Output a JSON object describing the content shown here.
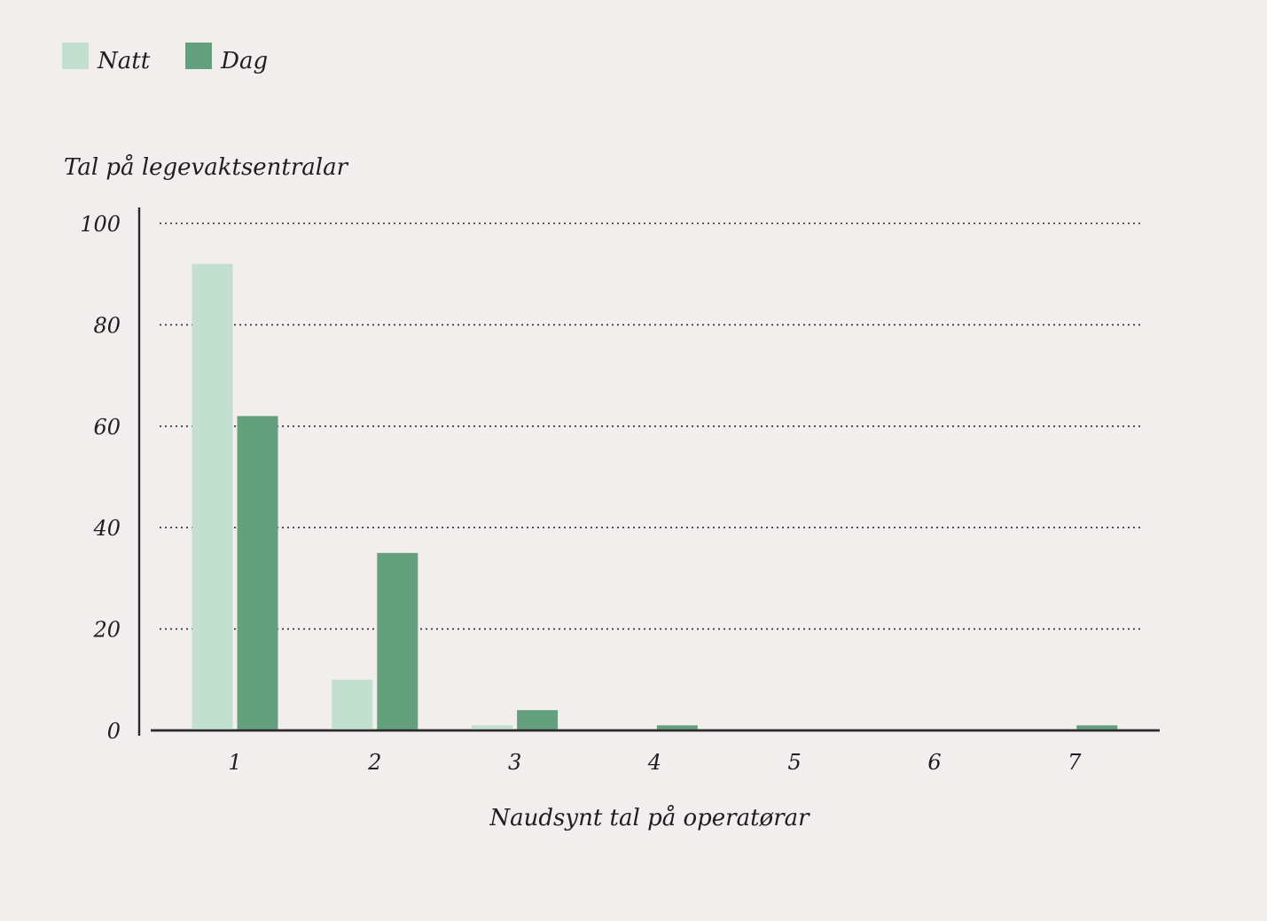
{
  "legend": {
    "items": [
      {
        "label": "Natt",
        "color": "#c3dfcf"
      },
      {
        "label": "Dag",
        "color": "#64a07d"
      }
    ]
  },
  "chart_data": {
    "type": "bar",
    "title": "",
    "ylabel": "Tal på legevaktsentralar",
    "xlabel": "Naudsynt tal på operatørar",
    "categories": [
      "1",
      "2",
      "3",
      "4",
      "5",
      "6",
      "7"
    ],
    "ylim": [
      0,
      100
    ],
    "yticks": [
      0,
      20,
      40,
      60,
      80,
      100
    ],
    "grid": "dotted horizontal",
    "legend_position": "top-left",
    "series": [
      {
        "name": "Natt",
        "color": "#c3dfcf",
        "values": [
          92,
          10,
          1,
          0,
          0,
          0,
          0
        ]
      },
      {
        "name": "Dag",
        "color": "#64a07d",
        "values": [
          62,
          35,
          4,
          1,
          0,
          0,
          1
        ]
      }
    ]
  }
}
